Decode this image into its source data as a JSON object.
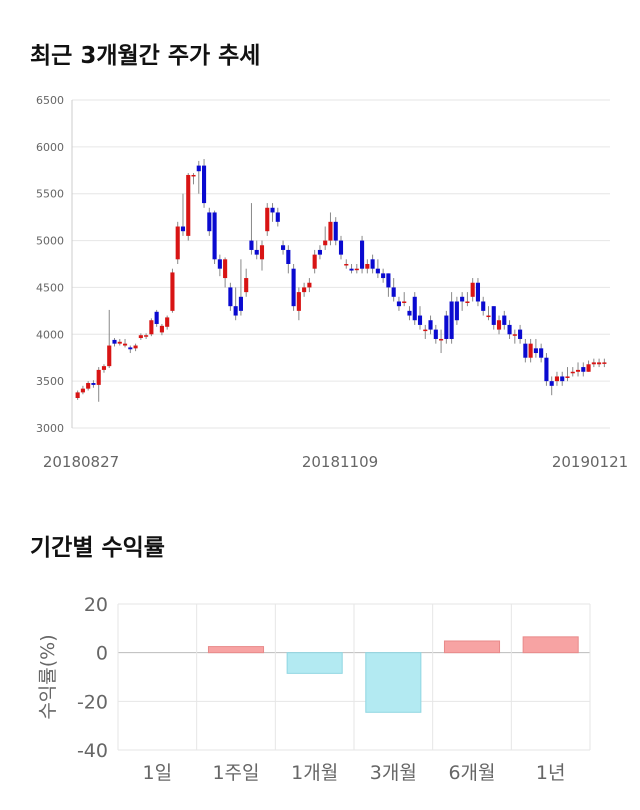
{
  "sections": {
    "price_title": "최근 3개월간 주가 추세",
    "return_title": "기간별 수익률"
  },
  "chart_data": [
    {
      "type": "candlestick",
      "title": "최근 3개월간 주가 추세",
      "y_ticks": [
        "6500",
        "6000",
        "5500",
        "5000",
        "4500",
        "4000",
        "3500",
        "3000"
      ],
      "ylim": [
        3000,
        6500
      ],
      "x_labels": [
        "20180827",
        "20181109",
        "20190121"
      ],
      "grid": true,
      "colors": {
        "up": "#d81414",
        "down": "#0a0ad0",
        "wick": "#888888"
      },
      "candles": [
        [
          3320,
          3380,
          3300,
          3400
        ],
        [
          3380,
          3420,
          3360,
          3450
        ],
        [
          3420,
          3480,
          3400,
          3500
        ],
        [
          3480,
          3460,
          3430,
          3510
        ],
        [
          3460,
          3620,
          3280,
          3650
        ],
        [
          3620,
          3660,
          3590,
          3680
        ],
        [
          3660,
          3880,
          3640,
          4260
        ],
        [
          3940,
          3900,
          3870,
          3960
        ],
        [
          3900,
          3920,
          3880,
          3950
        ],
        [
          3880,
          3900,
          3860,
          3950
        ],
        [
          3860,
          3840,
          3800,
          3880
        ],
        [
          3850,
          3880,
          3820,
          3900
        ],
        [
          3960,
          3990,
          3940,
          4010
        ],
        [
          3980,
          3990,
          3950,
          4010
        ],
        [
          4000,
          4150,
          3980,
          4170
        ],
        [
          4240,
          4110,
          4080,
          4260
        ],
        [
          4020,
          4090,
          3990,
          4110
        ],
        [
          4080,
          4180,
          4050,
          4200
        ],
        [
          4250,
          4660,
          4230,
          4700
        ],
        [
          4800,
          5150,
          4750,
          5200
        ],
        [
          5150,
          5100,
          5050,
          5500
        ],
        [
          5050,
          5700,
          5000,
          5720
        ],
        [
          5700,
          5700,
          5600,
          5720
        ],
        [
          5800,
          5740,
          5500,
          5850
        ],
        [
          5800,
          5400,
          5350,
          5870
        ],
        [
          5300,
          5100,
          5050,
          5350
        ],
        [
          5300,
          4800,
          4750,
          5320
        ],
        [
          4800,
          4700,
          4620,
          4850
        ],
        [
          4600,
          4800,
          4500,
          4820
        ],
        [
          4500,
          4300,
          4250,
          4550
        ],
        [
          4300,
          4200,
          4150,
          4500
        ],
        [
          4400,
          4250,
          4200,
          4800
        ],
        [
          4450,
          4600,
          4400,
          4700
        ],
        [
          5000,
          4900,
          4850,
          5400
        ],
        [
          4900,
          4850,
          4800,
          5000
        ],
        [
          4800,
          4950,
          4680,
          5000
        ],
        [
          5100,
          5350,
          5050,
          5400
        ],
        [
          5350,
          5300,
          5200,
          5400
        ],
        [
          5300,
          5200,
          5150,
          5350
        ],
        [
          4950,
          4900,
          4850,
          5000
        ],
        [
          4900,
          4750,
          4650,
          4950
        ],
        [
          4700,
          4300,
          4250,
          4750
        ],
        [
          4250,
          4450,
          4150,
          4500
        ],
        [
          4450,
          4500,
          4400,
          4550
        ],
        [
          4500,
          4550,
          4450,
          4600
        ],
        [
          4700,
          4850,
          4650,
          4900
        ],
        [
          4900,
          4850,
          4800,
          4950
        ],
        [
          4950,
          5000,
          4900,
          5150
        ],
        [
          5000,
          5200,
          4950,
          5300
        ],
        [
          5200,
          5000,
          4950,
          5250
        ],
        [
          5000,
          4850,
          4800,
          5050
        ],
        [
          4750,
          4750,
          4700,
          4800
        ],
        [
          4700,
          4680,
          4650,
          4750
        ],
        [
          4700,
          4700,
          4650,
          4750
        ],
        [
          5000,
          4700,
          4650,
          5050
        ],
        [
          4700,
          4750,
          4650,
          4800
        ],
        [
          4800,
          4700,
          4650,
          4850
        ],
        [
          4700,
          4650,
          4600,
          4800
        ],
        [
          4650,
          4600,
          4550,
          4700
        ],
        [
          4650,
          4500,
          4400,
          4650
        ],
        [
          4500,
          4400,
          4350,
          4600
        ],
        [
          4350,
          4300,
          4250,
          4400
        ],
        [
          4350,
          4350,
          4300,
          4450
        ],
        [
          4250,
          4200,
          4150,
          4300
        ],
        [
          4400,
          4150,
          4100,
          4450
        ],
        [
          4200,
          4100,
          4050,
          4300
        ],
        [
          4050,
          4050,
          3950,
          4100
        ],
        [
          4150,
          4050,
          4000,
          4200
        ],
        [
          4050,
          3950,
          3900,
          4100
        ],
        [
          3950,
          3950,
          3800,
          4050
        ],
        [
          4200,
          3950,
          3900,
          4250
        ],
        [
          4350,
          3950,
          3900,
          4450
        ],
        [
          4350,
          4150,
          4100,
          4400
        ],
        [
          4400,
          4350,
          4250,
          4450
        ],
        [
          4350,
          4350,
          4300,
          4450
        ],
        [
          4400,
          4550,
          4350,
          4600
        ],
        [
          4550,
          4350,
          4300,
          4600
        ],
        [
          4350,
          4250,
          4200,
          4400
        ],
        [
          4200,
          4200,
          4150,
          4300
        ],
        [
          4300,
          4100,
          4050,
          4300
        ],
        [
          4050,
          4150,
          4000,
          4200
        ],
        [
          4200,
          4100,
          4050,
          4250
        ],
        [
          4100,
          4000,
          3950,
          4150
        ],
        [
          4000,
          4000,
          3900,
          4050
        ],
        [
          4050,
          3950,
          3900,
          4100
        ],
        [
          3900,
          3750,
          3700,
          3950
        ],
        [
          3750,
          3900,
          3700,
          3950
        ],
        [
          3850,
          3800,
          3750,
          3950
        ],
        [
          3850,
          3750,
          3700,
          3900
        ],
        [
          3750,
          3500,
          3450,
          3800
        ],
        [
          3500,
          3450,
          3350,
          3550
        ],
        [
          3500,
          3550,
          3450,
          3600
        ],
        [
          3550,
          3500,
          3450,
          3600
        ],
        [
          3550,
          3550,
          3500,
          3650
        ],
        [
          3600,
          3600,
          3550,
          3650
        ],
        [
          3600,
          3620,
          3550,
          3700
        ],
        [
          3650,
          3600,
          3550,
          3700
        ],
        [
          3600,
          3680,
          3600,
          3720
        ],
        [
          3680,
          3700,
          3650,
          3740
        ],
        [
          3680,
          3700,
          3650,
          3740
        ],
        [
          3700,
          3700,
          3650,
          3740
        ]
      ]
    },
    {
      "type": "bar",
      "title": "기간별 수익률",
      "ylabel": "수익률(%)",
      "categories": [
        "1일",
        "1주일",
        "1개월",
        "3개월",
        "6개월",
        "1년"
      ],
      "values": [
        0,
        2.5,
        -8.5,
        -24.5,
        4.8,
        6.5
      ],
      "ylim": [
        -40,
        20
      ],
      "y_ticks": [
        "20",
        "0",
        "-20",
        "-40"
      ],
      "colors": {
        "positive": "#f7a3a3",
        "negative": "#b3eaf2"
      }
    }
  ]
}
